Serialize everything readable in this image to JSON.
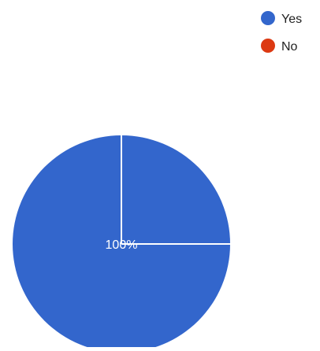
{
  "chart_data": {
    "type": "pie",
    "title": "",
    "categories": [
      "Yes",
      "No"
    ],
    "values": [
      100,
      0
    ],
    "colors": [
      "#3366cc",
      "#dc3912"
    ],
    "data_labels": [
      "100%"
    ],
    "legend_position": "top-right"
  }
}
